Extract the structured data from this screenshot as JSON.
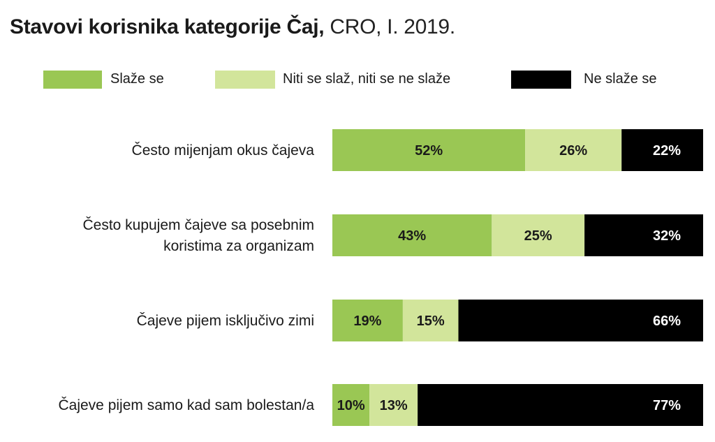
{
  "title": {
    "bold": "Stavovi korisnika kategorije Čaj,",
    "light": "CRO, I. 2019."
  },
  "legend": [
    {
      "label": "Slaže se",
      "color": "#9ac754"
    },
    {
      "label": "Niti se slaž, niti se ne slaže",
      "color": "#d2e59b"
    },
    {
      "label": "Ne slaže se",
      "color": "#000000"
    }
  ],
  "chart_data": {
    "type": "bar",
    "orientation": "horizontal",
    "stacked": true,
    "title": "Stavovi korisnika kategorije Čaj, CRO, I. 2019.",
    "categories": [
      [
        "Često mijenjam okus čajeva"
      ],
      [
        "Često kupujem čajeve sa posebnim",
        "koristima za organizam"
      ],
      [
        "Čajeve pijem isključivo zimi"
      ],
      [
        "Čajeve pijem samo kad sam bolestan/a"
      ]
    ],
    "series": [
      {
        "name": "Slaže se",
        "color": "#9ac754",
        "text_color": "#1a1a1a",
        "values": [
          52,
          43,
          19,
          10
        ]
      },
      {
        "name": "Niti se slaž, niti se ne slaže",
        "color": "#d2e59b",
        "text_color": "#1a1a1a",
        "values": [
          26,
          25,
          15,
          13
        ]
      },
      {
        "name": "Ne slaže se",
        "color": "#000000",
        "text_color": "#ffffff",
        "values": [
          22,
          32,
          66,
          77
        ]
      }
    ],
    "value_suffix": "%",
    "xlim": [
      0,
      100
    ],
    "legend_position": "top",
    "grid": false
  }
}
